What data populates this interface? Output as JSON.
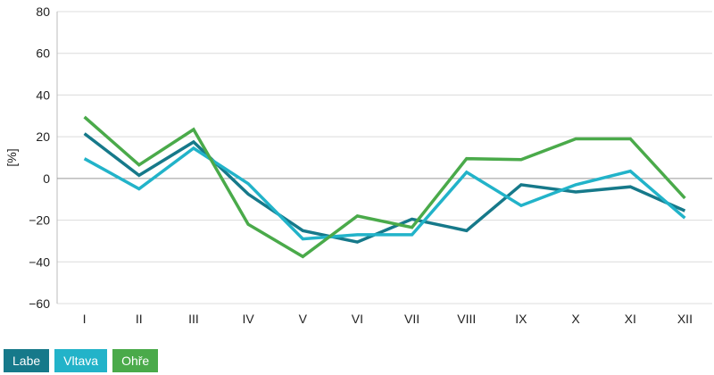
{
  "chart_data": {
    "type": "line",
    "xlabel": "",
    "ylabel": "[%]",
    "ylim": [
      -60,
      80
    ],
    "yticks": [
      80,
      60,
      40,
      20,
      0,
      -20,
      -40,
      -60
    ],
    "yticks_labels": [
      "80",
      "60",
      "40",
      "20",
      "0",
      "−20",
      "−40",
      "−60"
    ],
    "categories": [
      "I",
      "II",
      "III",
      "IV",
      "V",
      "VI",
      "VII",
      "VIII",
      "IX",
      "X",
      "XI",
      "XII"
    ],
    "grid": true,
    "legend_position": "bottom-left",
    "series": [
      {
        "name": "Labe",
        "color": "#16798a",
        "values": [
          21.5,
          1.5,
          17.5,
          -7.5,
          -25,
          -30.5,
          -19.5,
          -25,
          -3,
          -6.5,
          -4,
          -15.5
        ]
      },
      {
        "name": "Vltava",
        "color": "#22b3c9",
        "values": [
          9.5,
          -5,
          14.5,
          -2.5,
          -29,
          -27,
          -27,
          3,
          -13,
          -3,
          3.5,
          -19
        ]
      },
      {
        "name": "Ohře",
        "color": "#4aaa4a",
        "values": [
          29.5,
          6.5,
          23.5,
          -22,
          -37.5,
          -18,
          -23.5,
          9.5,
          9,
          19,
          19,
          -9.5
        ]
      }
    ]
  }
}
